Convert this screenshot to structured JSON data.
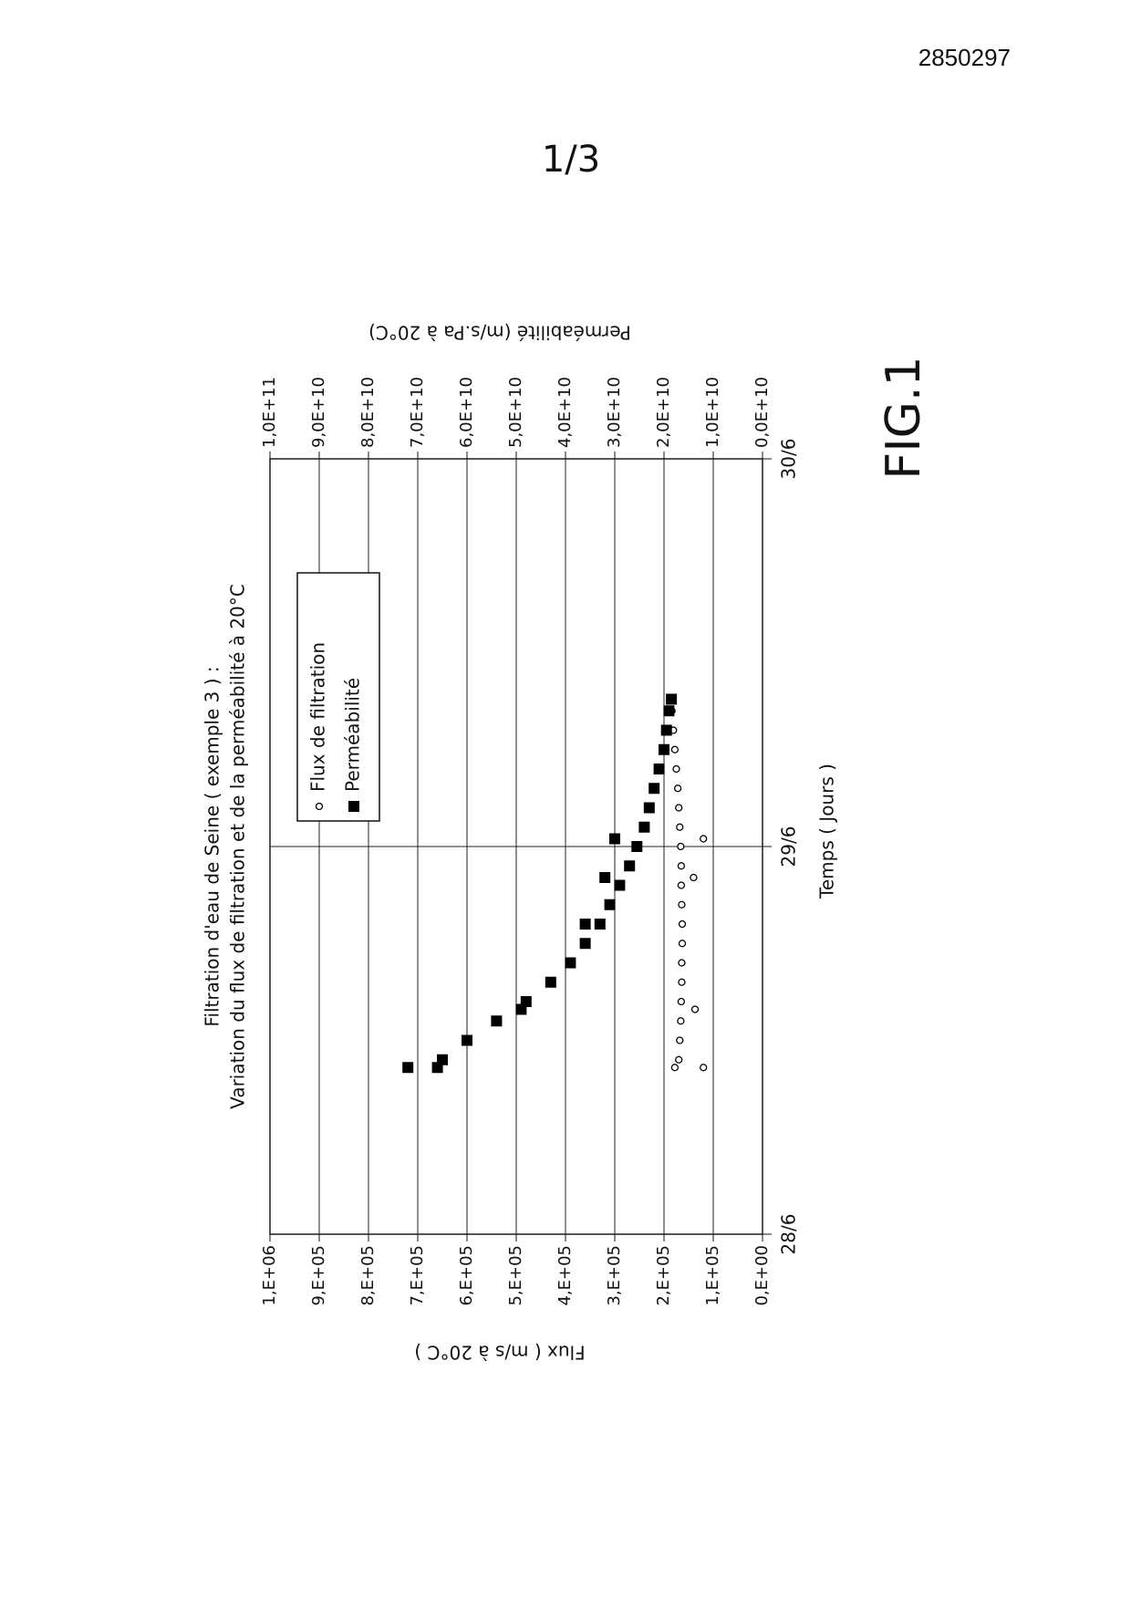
{
  "doc_number": "2850297",
  "sheet": "1/3",
  "figure_label": "FIG.1",
  "chart_data": {
    "type": "scatter",
    "title": [
      "Filtration d'eau de Seine ( exemple 3 ) :",
      "Variation du flux de filtration et de la perméabilité à 20°C"
    ],
    "xlabel": "Temps ( Jours )",
    "ylabel": "Flux ( m/s à 20°C )",
    "y2label": "Perméabilité (m/s.Pa à 20°C)",
    "xlim": [
      28,
      30
    ],
    "xticks": [
      {
        "value": 28,
        "label": "28/6"
      },
      {
        "value": 29,
        "label": "29/6"
      },
      {
        "value": 30,
        "label": "30/6"
      }
    ],
    "ylim": [
      0,
      1000000
    ],
    "yticks": [
      {
        "value": 0,
        "label": "0,E+00"
      },
      {
        "value": 100000,
        "label": "1,E+05"
      },
      {
        "value": 200000,
        "label": "2,E+05"
      },
      {
        "value": 300000,
        "label": "3,E+05"
      },
      {
        "value": 400000,
        "label": "4,E+05"
      },
      {
        "value": 500000,
        "label": "5,E+05"
      },
      {
        "value": 600000,
        "label": "6,E+05"
      },
      {
        "value": 700000,
        "label": "7,E+05"
      },
      {
        "value": 800000,
        "label": "8,E+05"
      },
      {
        "value": 900000,
        "label": "9,E+05"
      },
      {
        "value": 1000000,
        "label": "1,E+06"
      }
    ],
    "y2lim": [
      0,
      100000000000.0
    ],
    "y2ticks": [
      {
        "value": 0,
        "label": "0,0E+10"
      },
      {
        "value": 10000000000.0,
        "label": "1,0E+10"
      },
      {
        "value": 20000000000.0,
        "label": "2,0E+10"
      },
      {
        "value": 30000000000.0,
        "label": "3,0E+10"
      },
      {
        "value": 40000000000.0,
        "label": "4,0E+10"
      },
      {
        "value": 50000000000.0,
        "label": "5,0E+10"
      },
      {
        "value": 60000000000.0,
        "label": "6,0E+10"
      },
      {
        "value": 70000000000.0,
        "label": "7,0E+10"
      },
      {
        "value": 80000000000.0,
        "label": "8,0E+10"
      },
      {
        "value": 90000000000.0,
        "label": "9,0E+10"
      },
      {
        "value": 100000000000.0,
        "label": "1,0E+11"
      }
    ],
    "grid": true,
    "legend": "upper center",
    "series": [
      {
        "name": "Flux de filtration",
        "color": "#000000",
        "marker": "circle",
        "x": [
          28.43,
          28.43,
          28.45,
          28.5,
          28.55,
          28.58,
          28.6,
          28.65,
          28.7,
          28.75,
          28.8,
          28.85,
          28.9,
          28.92,
          28.95,
          29.0,
          29.02,
          29.05,
          29.1,
          29.15,
          29.2,
          29.25,
          29.3,
          29.35,
          29.38
        ],
        "values": [
          178000,
          120000,
          170000,
          168000,
          166000,
          137000,
          165000,
          164000,
          164000,
          163000,
          163000,
          164000,
          165000,
          140000,
          165000,
          166000,
          120000,
          168000,
          170000,
          172000,
          175000,
          178000,
          181000,
          184000,
          186000
        ]
      },
      {
        "name": "Perméabilité",
        "color": "#000000",
        "marker": "square",
        "axis": "y2",
        "x": [
          28.43,
          28.43,
          28.45,
          28.5,
          28.55,
          28.58,
          28.6,
          28.65,
          28.7,
          28.75,
          28.8,
          28.8,
          28.85,
          28.9,
          28.92,
          28.95,
          29.0,
          29.02,
          29.05,
          29.1,
          29.15,
          29.2,
          29.25,
          29.3,
          29.35,
          29.38
        ],
        "values": [
          66000000000.0,
          72000000000.0,
          65000000000.0,
          60000000000.0,
          54000000000.0,
          49000000000.0,
          48000000000.0,
          43000000000.0,
          39000000000.0,
          36000000000.0,
          33000000000.0,
          36000000000.0,
          31000000000.0,
          29000000000.0,
          32000000000.0,
          27000000000.0,
          25500000000.0,
          30000000000.0,
          24000000000.0,
          23000000000.0,
          22000000000.0,
          21000000000.0,
          20000000000.0,
          19500000000.0,
          19000000000.0,
          18500000000.0
        ]
      }
    ]
  }
}
